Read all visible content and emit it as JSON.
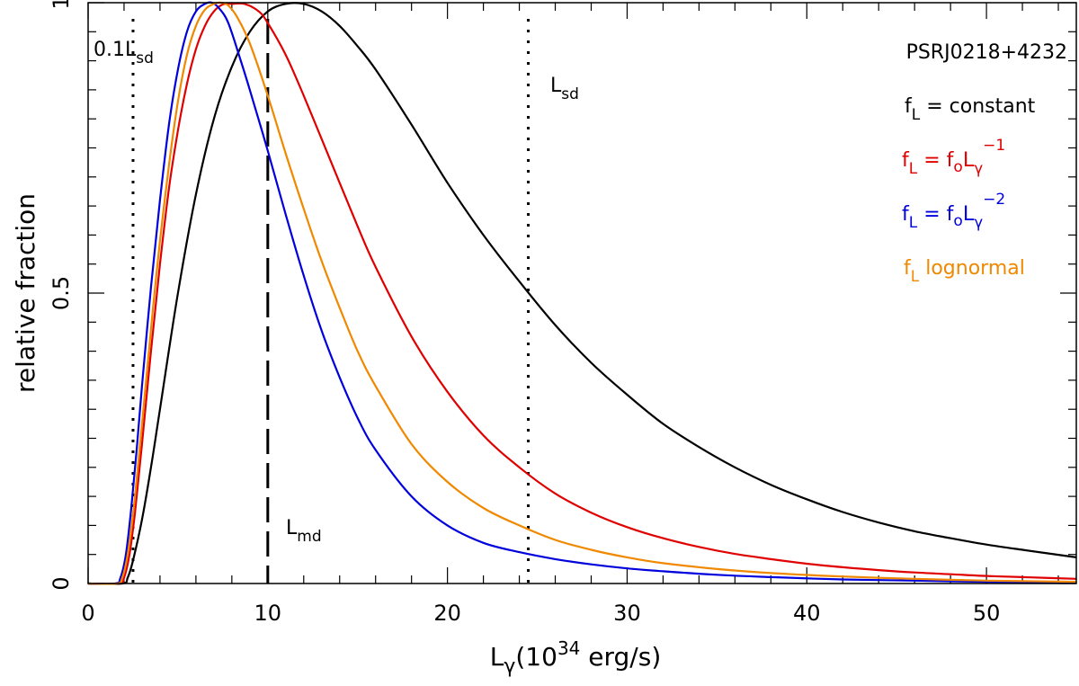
{
  "chart_data": {
    "type": "line",
    "title": "PSRJ0218+4232",
    "xlabel": {
      "main": "L",
      "sub": "γ",
      "pre": "(10",
      "sup": "34",
      "post": " erg/s)"
    },
    "ylabel": "relative fraction",
    "xlim": [
      0,
      55
    ],
    "ylim": [
      0,
      1
    ],
    "xticks": [
      0,
      10,
      20,
      30,
      40,
      50
    ],
    "yticks": [
      0,
      0.5,
      1
    ],
    "xtick_labels": [
      "0",
      "10",
      "20",
      "30",
      "40",
      "50"
    ],
    "ytick_labels": [
      "0",
      "0.5",
      "1"
    ],
    "vlines": [
      {
        "name": "0.1Lsd",
        "x": 2.5,
        "style": "dotted",
        "label": {
          "main": "0.1L",
          "sub": "sd"
        }
      },
      {
        "name": "Lmd",
        "x": 10.0,
        "style": "dashed",
        "label": {
          "main": "L",
          "sub": "md"
        }
      },
      {
        "name": "Lsd",
        "x": 24.5,
        "style": "dotted",
        "label": {
          "main": "L",
          "sub": "sd"
        }
      }
    ],
    "series": [
      {
        "name": "f_L = constant",
        "color": "#000000",
        "legend": {
          "f": "f",
          "fsub": "L",
          "eq": " = constant"
        },
        "x": [
          1.9,
          2.2,
          2.5,
          3,
          3.5,
          4,
          5,
          6,
          7,
          8,
          9,
          10,
          11,
          12,
          13,
          14,
          15,
          16,
          18,
          20,
          22,
          24,
          26,
          28,
          30,
          32,
          34,
          36,
          38,
          40,
          42,
          44,
          46,
          48,
          50,
          52,
          55
        ],
        "y": [
          0,
          0.01,
          0.04,
          0.11,
          0.2,
          0.3,
          0.5,
          0.67,
          0.8,
          0.89,
          0.95,
          0.985,
          0.998,
          0.998,
          0.985,
          0.96,
          0.925,
          0.885,
          0.79,
          0.69,
          0.6,
          0.52,
          0.445,
          0.38,
          0.325,
          0.275,
          0.235,
          0.2,
          0.17,
          0.145,
          0.123,
          0.105,
          0.09,
          0.078,
          0.067,
          0.058,
          0.045
        ]
      },
      {
        "name": "f_L = f_o L_gamma^-1",
        "color": "#e00000",
        "legend": {
          "f": "f",
          "fsub": "L",
          "eq": " = f",
          "osub": "o",
          "L": "L",
          "gsub": "γ",
          "sup": "−1"
        },
        "x": [
          1.7,
          2,
          2.3,
          2.6,
          3,
          3.5,
          4,
          4.5,
          5,
          5.5,
          6,
          6.5,
          7,
          7.5,
          8,
          8.7,
          9.5,
          10,
          11,
          12,
          13,
          14,
          15,
          16,
          18,
          20,
          22,
          24,
          26,
          28,
          30,
          32,
          34,
          36,
          38,
          40,
          42,
          44,
          46,
          48,
          50,
          52,
          55
        ],
        "y": [
          0,
          0.01,
          0.05,
          0.12,
          0.24,
          0.4,
          0.55,
          0.68,
          0.78,
          0.86,
          0.92,
          0.96,
          0.985,
          0.997,
          0.998,
          0.998,
          0.985,
          0.965,
          0.91,
          0.84,
          0.765,
          0.69,
          0.615,
          0.545,
          0.425,
          0.33,
          0.255,
          0.2,
          0.155,
          0.122,
          0.097,
          0.078,
          0.063,
          0.051,
          0.042,
          0.034,
          0.028,
          0.023,
          0.019,
          0.016,
          0.013,
          0.011,
          0.008
        ]
      },
      {
        "name": "f_L = f_o L_gamma^-2",
        "color": "#0000dd",
        "legend": {
          "f": "f",
          "fsub": "L",
          "eq": " = f",
          "osub": "o",
          "L": "L",
          "gsub": "γ",
          "sup": "−2"
        },
        "x": [
          1.5,
          1.8,
          2.1,
          2.4,
          2.7,
          3,
          3.5,
          4,
          4.5,
          5,
          5.5,
          6,
          6.5,
          6.9,
          7.3,
          7.8,
          8.5,
          9,
          10,
          11,
          12,
          13,
          14,
          15,
          16,
          18,
          20,
          22,
          24,
          26,
          28,
          30,
          32,
          35,
          38,
          42,
          46,
          50,
          55
        ],
        "y": [
          0,
          0.01,
          0.05,
          0.13,
          0.23,
          0.34,
          0.51,
          0.66,
          0.79,
          0.885,
          0.95,
          0.985,
          0.998,
          1.0,
          0.99,
          0.965,
          0.9,
          0.85,
          0.745,
          0.635,
          0.53,
          0.435,
          0.355,
          0.285,
          0.23,
          0.15,
          0.1,
          0.07,
          0.054,
          0.042,
          0.033,
          0.026,
          0.021,
          0.015,
          0.011,
          0.007,
          0.005,
          0.003,
          0.002
        ]
      },
      {
        "name": "f_L lognormal",
        "color": "#f08800",
        "legend": {
          "f": "f",
          "fsub": "L",
          "eq": " lognormal"
        },
        "x": [
          1.6,
          1.9,
          2.2,
          2.5,
          2.8,
          3.2,
          3.6,
          4,
          4.5,
          5,
          5.5,
          6,
          6.5,
          7,
          7.4,
          7.8,
          8.3,
          9,
          10,
          11,
          12,
          13,
          14,
          15,
          16,
          18,
          20,
          22,
          24,
          26,
          28,
          30,
          32,
          35,
          38,
          42,
          46,
          50,
          55
        ],
        "y": [
          0,
          0.01,
          0.05,
          0.12,
          0.21,
          0.34,
          0.47,
          0.59,
          0.72,
          0.83,
          0.91,
          0.96,
          0.988,
          0.998,
          1.0,
          0.995,
          0.975,
          0.93,
          0.84,
          0.74,
          0.645,
          0.555,
          0.475,
          0.4,
          0.34,
          0.24,
          0.175,
          0.13,
          0.1,
          0.075,
          0.058,
          0.045,
          0.035,
          0.025,
          0.018,
          0.012,
          0.008,
          0.005,
          0.003
        ]
      }
    ]
  }
}
